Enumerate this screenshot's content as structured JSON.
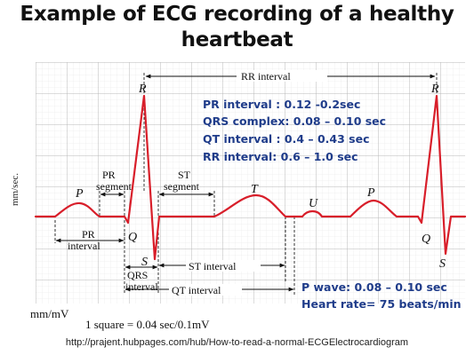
{
  "title_line1": "Example of ECG recording of a healthy",
  "title_line2": "heartbeat",
  "y_axis_label": "mm/sec.",
  "scale_unit": "mm/mV",
  "scale_note": "1 square = 0.04 sec/0.1mV",
  "source_credit": "http://prajent.hubpages.com/hub/How-to-read-a-normal-ECGElectrocardiogram",
  "waves": {
    "p_left": "P",
    "r_left": "R",
    "q_left": "Q",
    "s_left": "S",
    "t": "T",
    "u": "U",
    "p_right": "P",
    "r_right": "R",
    "q_right": "Q",
    "s_right": "S"
  },
  "labels": {
    "rr_interval": "RR interval",
    "pr_segment_1": "PR",
    "pr_segment_2": "segment",
    "st_segment_1": "ST",
    "st_segment_2": "segment",
    "pr_interval_1": "PR",
    "pr_interval_2": "interval",
    "qrs_interval_1": "QRS",
    "qrs_interval_2": "interval",
    "st_interval": "ST interval",
    "qt_interval": "QT interval"
  },
  "facts_top": [
    "PR interval : 0.12 -0.2sec",
    "QRS complex: 0.08 – 0.10 sec",
    "QT interval : 0.4 – 0.43 sec",
    "RR interval: 0.6 – 1.0 sec"
  ],
  "facts_bottom": [
    "P wave: 0.08 – 0.10 sec",
    "Heart rate= 75 beats/min"
  ],
  "colors": {
    "grid_minor": "#ececec",
    "grid_major": "#b9b9b9",
    "trace": "#d81e2a",
    "annotation_text": "#1f3c8a"
  }
}
